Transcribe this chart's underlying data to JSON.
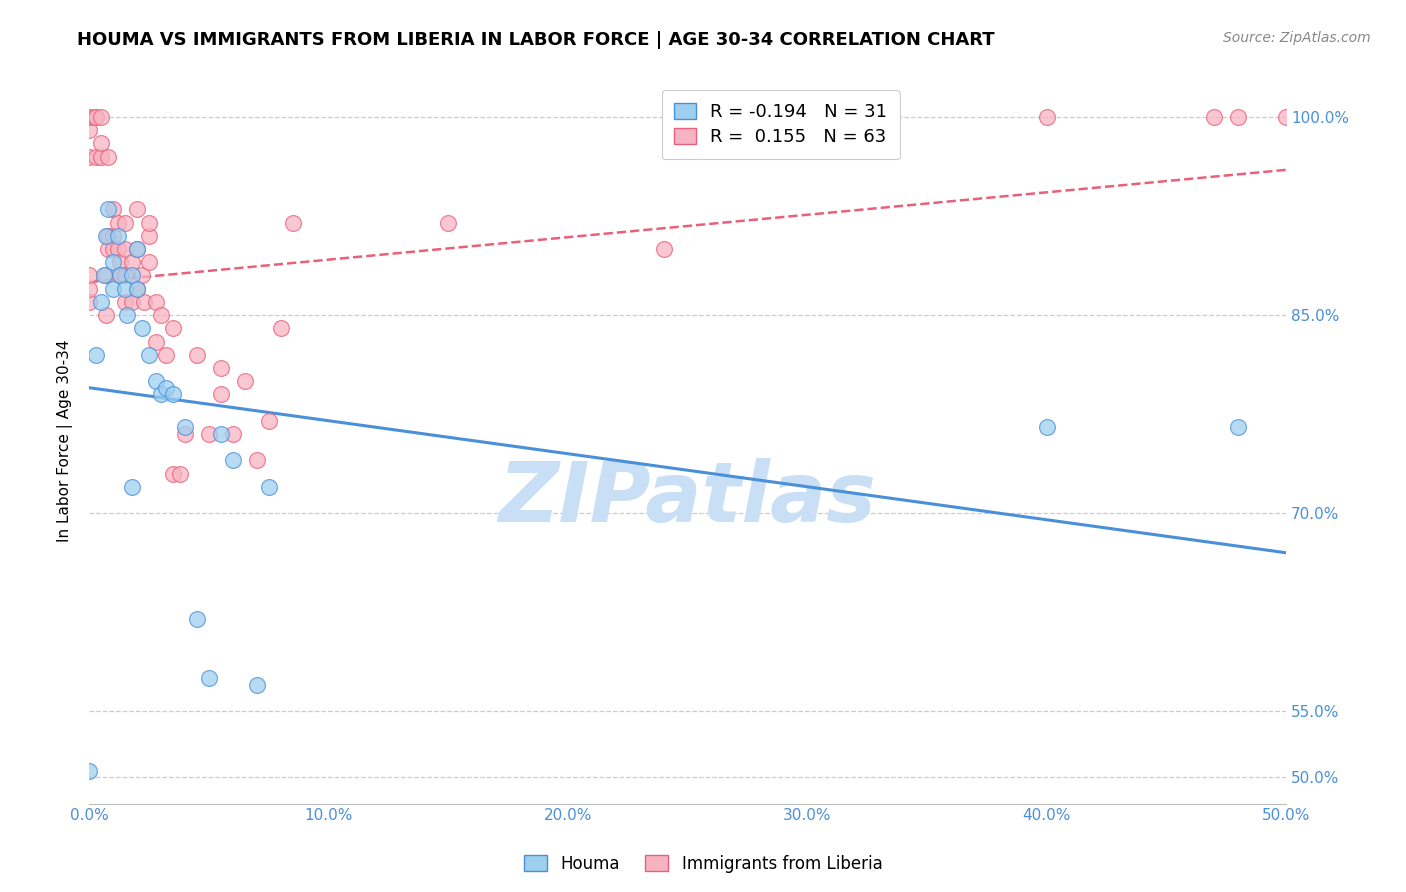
{
  "title": "HOUMA VS IMMIGRANTS FROM LIBERIA IN LABOR FORCE | AGE 30-34 CORRELATION CHART",
  "source": "Source: ZipAtlas.com",
  "ylabel": "In Labor Force | Age 30-34",
  "legend_label1": "Houma",
  "legend_label2": "Immigrants from Liberia",
  "legend_R1": "-0.194",
  "legend_N1": "31",
  "legend_R2": " 0.155",
  "legend_N2": "63",
  "watermark": "ZIPatlas",
  "xlim": [
    0.0,
    50.0
  ],
  "ylim": [
    48.0,
    103.0
  ],
  "xticks": [
    0.0,
    10.0,
    20.0,
    30.0,
    40.0,
    50.0
  ],
  "yticks": [
    50.0,
    55.0,
    70.0,
    85.0,
    100.0
  ],
  "blue_scatter_x": [
    0.0,
    0.3,
    0.5,
    0.6,
    0.7,
    0.8,
    1.0,
    1.0,
    1.2,
    1.3,
    1.5,
    1.6,
    1.8,
    2.0,
    2.0,
    2.2,
    2.5,
    2.8,
    3.0,
    3.2,
    3.5,
    4.0,
    4.5,
    5.0,
    5.5,
    6.0,
    7.0,
    7.5,
    40.0,
    48.0,
    1.8
  ],
  "blue_scatter_y": [
    50.5,
    82.0,
    86.0,
    88.0,
    91.0,
    93.0,
    89.0,
    87.0,
    91.0,
    88.0,
    87.0,
    85.0,
    88.0,
    90.0,
    87.0,
    84.0,
    82.0,
    80.0,
    79.0,
    79.5,
    79.0,
    76.5,
    62.0,
    57.5,
    76.0,
    74.0,
    57.0,
    72.0,
    76.5,
    76.5,
    72.0
  ],
  "pink_scatter_x": [
    0.0,
    0.0,
    0.0,
    0.0,
    0.0,
    0.0,
    0.2,
    0.3,
    0.3,
    0.5,
    0.5,
    0.5,
    0.7,
    0.7,
    0.8,
    0.8,
    0.8,
    1.0,
    1.0,
    1.0,
    1.2,
    1.2,
    1.3,
    1.3,
    1.5,
    1.5,
    1.5,
    1.5,
    1.8,
    1.8,
    2.0,
    2.0,
    2.0,
    2.2,
    2.3,
    2.5,
    2.5,
    2.5,
    2.8,
    2.8,
    3.0,
    3.2,
    3.5,
    3.5,
    3.8,
    4.0,
    4.5,
    5.0,
    5.5,
    5.5,
    6.0,
    6.5,
    7.0,
    7.5,
    8.0,
    8.5,
    15.0,
    24.0,
    30.0,
    40.0,
    47.0,
    48.0,
    50.0
  ],
  "pink_scatter_y": [
    86.0,
    87.0,
    88.0,
    97.0,
    99.0,
    100.0,
    100.0,
    97.0,
    100.0,
    97.0,
    98.0,
    100.0,
    85.0,
    88.0,
    97.0,
    90.0,
    91.0,
    93.0,
    91.0,
    90.0,
    92.0,
    90.0,
    89.0,
    88.0,
    92.0,
    90.0,
    88.0,
    86.0,
    89.0,
    86.0,
    87.0,
    90.0,
    93.0,
    88.0,
    86.0,
    91.0,
    89.0,
    92.0,
    83.0,
    86.0,
    85.0,
    82.0,
    84.0,
    73.0,
    73.0,
    76.0,
    82.0,
    76.0,
    79.0,
    81.0,
    76.0,
    80.0,
    74.0,
    77.0,
    84.0,
    92.0,
    92.0,
    90.0,
    100.0,
    100.0,
    100.0,
    100.0,
    100.0
  ],
  "blue_color": "#9ECFEF",
  "pink_color": "#F7B3C2",
  "blue_line_color": "#4A90D9",
  "pink_line_color": "#E8607A",
  "blue_trend_x0": 0.0,
  "blue_trend_y0": 79.5,
  "blue_trend_x1": 50.0,
  "blue_trend_y1": 67.0,
  "pink_trend_x0": 0.0,
  "pink_trend_y0": 87.5,
  "pink_trend_x1": 50.0,
  "pink_trend_y1": 96.0,
  "title_fontsize": 13,
  "axis_label_fontsize": 11,
  "tick_fontsize": 11,
  "legend_fontsize": 13,
  "source_fontsize": 10,
  "watermark_color": "#C8DFF5",
  "watermark_fontsize": 60
}
